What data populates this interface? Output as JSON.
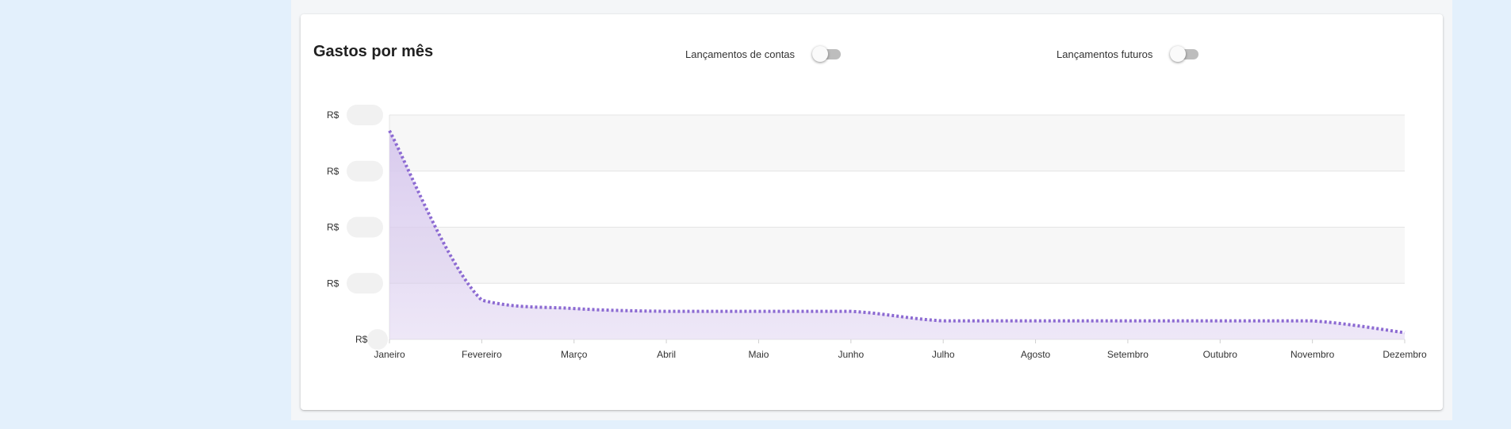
{
  "card": {
    "title": "Gastos por mês",
    "toggles": [
      {
        "label": "Lançamentos de contas",
        "checked": false
      },
      {
        "label": "Lançamentos futuros",
        "checked": false
      }
    ]
  },
  "colors": {
    "line": "#8c6ad2",
    "fill": "#d9cbee",
    "band": "#f7f7f7"
  },
  "chart_data": {
    "type": "area",
    "title": "Gastos por mês",
    "categories": [
      "Janeiro",
      "Fevereiro",
      "Março",
      "Abril",
      "Maio",
      "Junho",
      "Julho",
      "Agosto",
      "Setembro",
      "Outubro",
      "Novembro",
      "Dezembro"
    ],
    "y_tick_labels": [
      "R$",
      "R$",
      "R$",
      "R$",
      "R$"
    ],
    "y_tick_values": [
      0,
      1,
      2,
      3,
      4
    ],
    "ylim": [
      0,
      4
    ],
    "series": [
      {
        "values": [
          3.72,
          0.7,
          0.55,
          0.5,
          0.5,
          0.5,
          0.33,
          0.33,
          0.33,
          0.33,
          0.33,
          0.12
        ]
      }
    ],
    "grid": true,
    "line_style": "dotted",
    "xlabel": "",
    "ylabel": ""
  }
}
